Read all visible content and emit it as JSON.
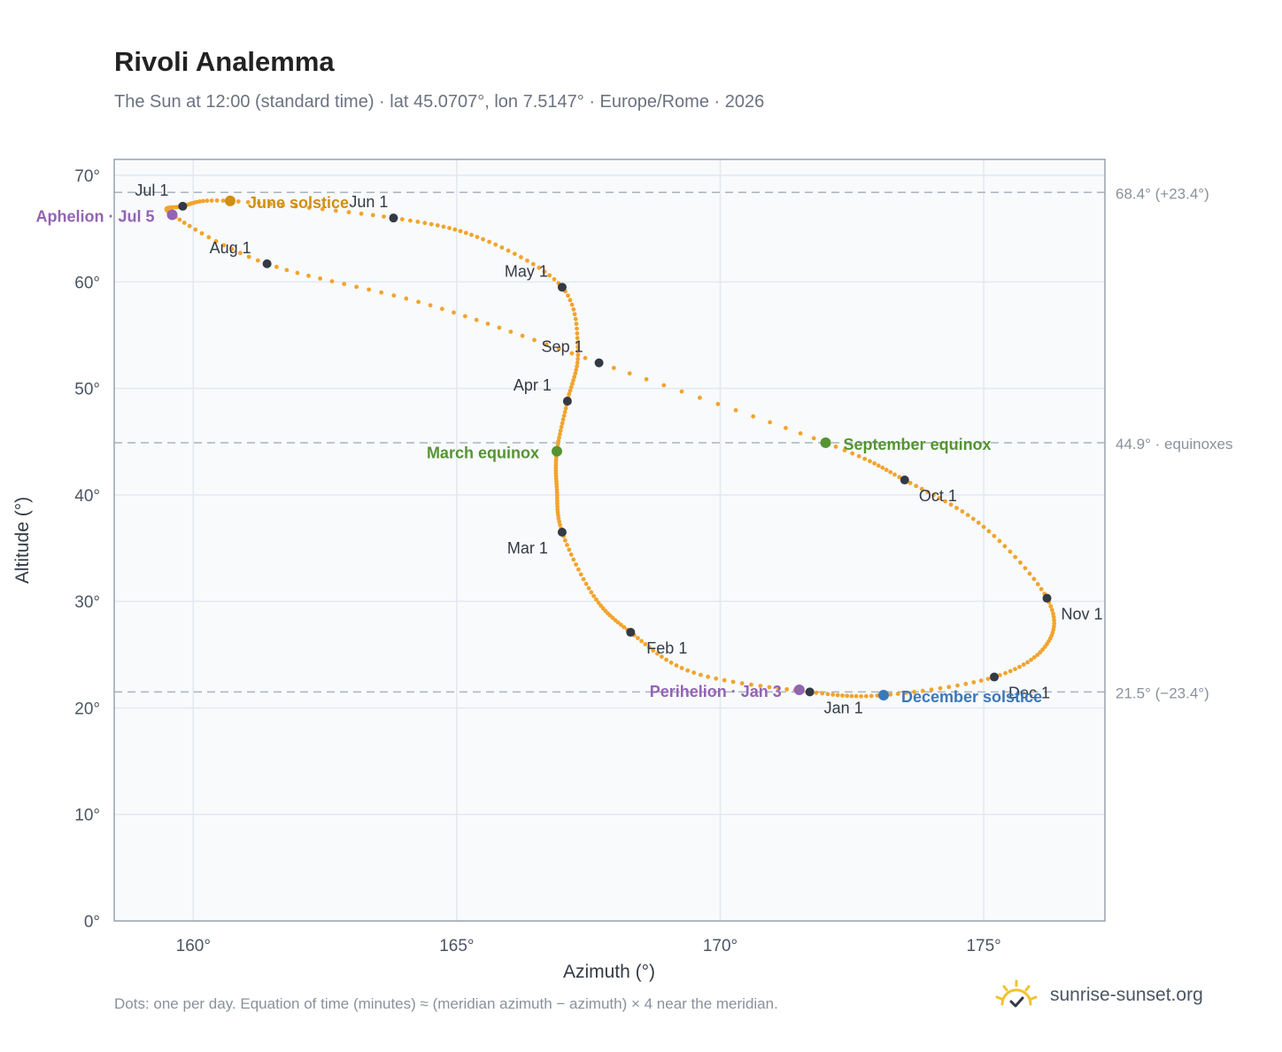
{
  "title": "Rivoli Analemma",
  "subtitle": "The Sun at 12:00 (standard time) · lat 45.0707°, lon 7.5147° · Europe/Rome · 2026",
  "footnote": "Dots: one per day. Equation of time (minutes) ≈ (meridian azimuth − azimuth) × 4 near the meridian.",
  "brand": {
    "text": "sunrise-sunset.org",
    "icon": "sun-logo-icon"
  },
  "colors": {
    "curve": "#f2a42d",
    "month_dot": "#333a44",
    "june_solstice": "#d08e12",
    "december_solstice": "#3b78b8",
    "equinox": "#569433",
    "apsis": "#9264b4",
    "reference_line": "#aab3bd",
    "plot_background": "#f8fafc",
    "grid": "#e3e8ee",
    "frame": "#98a3b0"
  },
  "chart_data": {
    "type": "scatter",
    "xlabel": "Azimuth (°)",
    "ylabel": "Altitude (°)",
    "xlim": [
      158.5,
      177.3
    ],
    "ylim": [
      0,
      71.5
    ],
    "xticks": [
      160,
      165,
      170,
      175
    ],
    "yticks": [
      0,
      10,
      20,
      30,
      40,
      50,
      60,
      70
    ],
    "x_tick_labels": [
      "160°",
      "165°",
      "170°",
      "175°"
    ],
    "y_tick_labels": [
      "0°",
      "10°",
      "20°",
      "30°",
      "40°",
      "50°",
      "60°",
      "70°"
    ],
    "grid": true,
    "curve": {
      "description_points": [
        {
          "x": 171.7,
          "y": 21.5
        },
        {
          "x": 169.5,
          "y": 23.3
        },
        {
          "x": 168.3,
          "y": 27.1
        },
        {
          "x": 167.6,
          "y": 30.5
        },
        {
          "x": 167.0,
          "y": 36.5
        },
        {
          "x": 166.9,
          "y": 40.5
        },
        {
          "x": 166.9,
          "y": 44.1
        },
        {
          "x": 167.1,
          "y": 48.8
        },
        {
          "x": 167.3,
          "y": 53.5
        },
        {
          "x": 167.0,
          "y": 59.5
        },
        {
          "x": 165.5,
          "y": 64.0
        },
        {
          "x": 163.8,
          "y": 66.0
        },
        {
          "x": 160.7,
          "y": 67.6
        },
        {
          "x": 159.8,
          "y": 67.1
        },
        {
          "x": 159.6,
          "y": 66.3
        },
        {
          "x": 161.4,
          "y": 61.7
        },
        {
          "x": 164.5,
          "y": 57.8
        },
        {
          "x": 167.7,
          "y": 52.4
        },
        {
          "x": 172.0,
          "y": 44.9
        },
        {
          "x": 173.5,
          "y": 41.4
        },
        {
          "x": 175.0,
          "y": 37.0
        },
        {
          "x": 176.2,
          "y": 30.3
        },
        {
          "x": 176.2,
          "y": 26.0
        },
        {
          "x": 175.2,
          "y": 22.9
        },
        {
          "x": 173.1,
          "y": 21.2
        },
        {
          "x": 171.7,
          "y": 21.5
        }
      ]
    },
    "month_markers": [
      {
        "label": "Jan 1",
        "x": 171.7,
        "y": 21.5
      },
      {
        "label": "Feb 1",
        "x": 168.3,
        "y": 27.1
      },
      {
        "label": "Mar 1",
        "x": 167.0,
        "y": 36.5
      },
      {
        "label": "Apr 1",
        "x": 167.1,
        "y": 48.8
      },
      {
        "label": "May 1",
        "x": 167.0,
        "y": 59.5
      },
      {
        "label": "Jun 1",
        "x": 163.8,
        "y": 66.0
      },
      {
        "label": "Jul 1",
        "x": 159.8,
        "y": 67.1
      },
      {
        "label": "Aug 1",
        "x": 161.4,
        "y": 61.7
      },
      {
        "label": "Sep 1",
        "x": 167.7,
        "y": 52.4
      },
      {
        "label": "Oct 1",
        "x": 173.5,
        "y": 41.4
      },
      {
        "label": "Nov 1",
        "x": 176.2,
        "y": 30.3
      },
      {
        "label": "Dec 1",
        "x": 175.2,
        "y": 22.9
      }
    ],
    "events": [
      {
        "label": "June solstice",
        "x": 160.7,
        "y": 67.6,
        "kind": "june_solstice"
      },
      {
        "label": "December solstice",
        "x": 173.1,
        "y": 21.2,
        "kind": "december_solstice"
      },
      {
        "label": "March equinox",
        "x": 166.9,
        "y": 44.1,
        "kind": "equinox"
      },
      {
        "label": "September equinox",
        "x": 172.0,
        "y": 44.9,
        "kind": "equinox"
      },
      {
        "label": "Aphelion · Jul 5",
        "x": 159.6,
        "y": 66.3,
        "kind": "apsis"
      },
      {
        "label": "Perihelion · Jan 3",
        "x": 171.5,
        "y": 21.7,
        "kind": "apsis"
      }
    ],
    "reference_lines": [
      {
        "y": 68.4,
        "label": "68.4° (+23.4°)"
      },
      {
        "y": 44.9,
        "label": "44.9° · equinoxes"
      },
      {
        "y": 21.5,
        "label": "21.5° (−23.4°)"
      }
    ]
  }
}
